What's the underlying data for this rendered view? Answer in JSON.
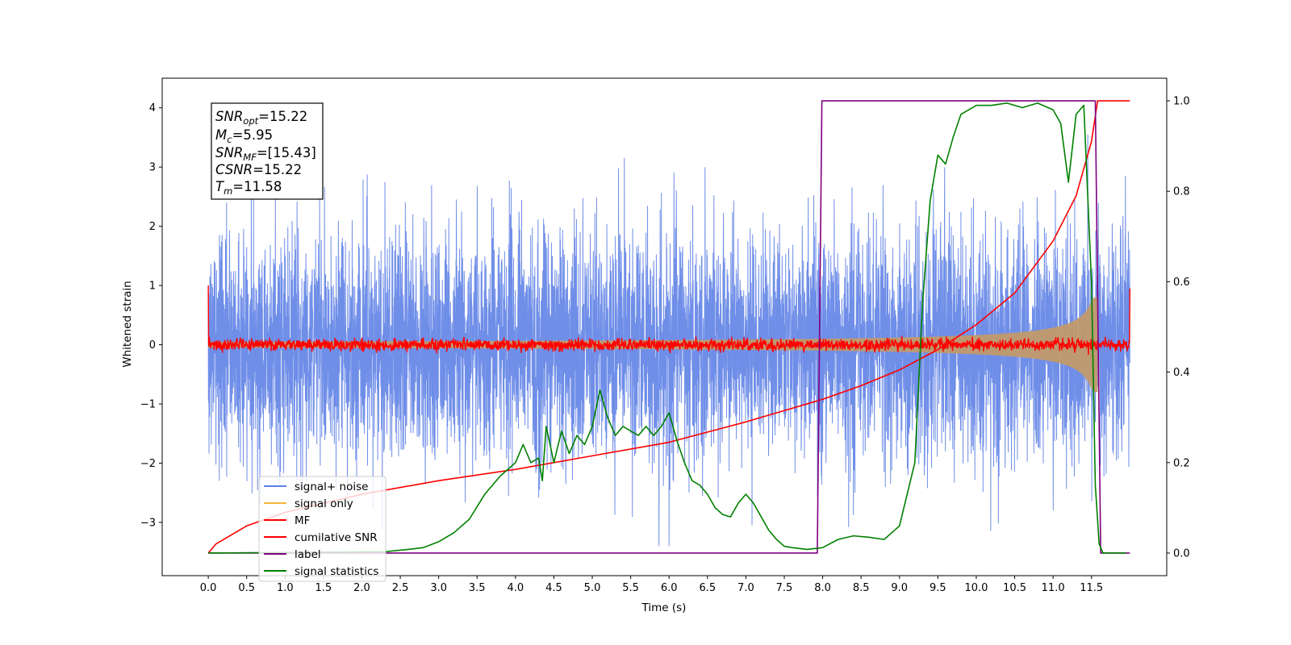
{
  "chart_data": {
    "type": "line",
    "xlabel": "Time (s)",
    "ylabel": "Whitened strain",
    "xlim": [
      -0.6,
      12.48
    ],
    "ylim": [
      -3.9,
      4.5
    ],
    "y2lim": [
      -0.05,
      1.05
    ],
    "x_ticks": [
      "0.0",
      "0.5",
      "1.0",
      "1.5",
      "2.0",
      "2.5",
      "3.0",
      "3.5",
      "4.0",
      "4.5",
      "5.0",
      "5.5",
      "6.0",
      "6.5",
      "7.0",
      "7.5",
      "8.0",
      "8.5",
      "9.0",
      "9.5",
      "10.0",
      "10.5",
      "11.0",
      "11.5"
    ],
    "y_ticks": [
      "4",
      "3",
      "2",
      "1",
      "0",
      "−1",
      "−2",
      "−3"
    ],
    "y2_ticks": [
      "1.0",
      "0.8",
      "0.6",
      "0.4",
      "0.2",
      "0.0"
    ],
    "info_box": {
      "snr_opt": {
        "sym": "SNR",
        "sub": "opt",
        "value": "=15.22"
      },
      "mc": {
        "sym": "M",
        "sub": "c",
        "value": "=5.95"
      },
      "snr_mf": {
        "sym": "SNR",
        "sub": "MF",
        "value": "=[15.43]"
      },
      "csnr": {
        "sym": "CSNR",
        "sub": "",
        "value": "=15.22"
      },
      "tm": {
        "sym": "T",
        "sub": "m",
        "value": "=11.58"
      }
    },
    "legend": {
      "position": "lower-left",
      "entries": [
        {
          "label": "signal+ noise",
          "color": "#5b7fe3"
        },
        {
          "label": "signal only",
          "color": "#f5b43c"
        },
        {
          "label": "MF",
          "color": "#ff0000"
        },
        {
          "label": "cumilative SNR",
          "color": "#ff0000"
        },
        {
          "label": "label",
          "color": "#800080"
        },
        {
          "label": "signal statistics",
          "color": "#008000"
        }
      ]
    },
    "series": [
      {
        "name": "signal+ noise",
        "axis": "left",
        "kind": "noise",
        "amplitude_std": 0.95,
        "x_range": [
          0,
          12.0
        ],
        "color": "#6f8ee8"
      },
      {
        "name": "signal only",
        "axis": "left",
        "kind": "chirp_envelope",
        "x_range": [
          0,
          11.58
        ],
        "amplitude_start": 0.05,
        "amplitude_end": 0.8,
        "color": "#c19a6b"
      },
      {
        "name": "MF",
        "axis": "left",
        "kind": "noise",
        "amplitude_std": 0.05,
        "x_range": [
          0,
          12.0
        ],
        "start_value": 1.0,
        "end_value": 0.95,
        "color": "#ff0000"
      },
      {
        "name": "cumilative SNR",
        "axis": "right",
        "x": [
          0.0,
          0.1,
          0.5,
          1.0,
          2.0,
          3.0,
          4.0,
          5.0,
          6.0,
          7.0,
          7.5,
          8.0,
          8.5,
          9.0,
          9.5,
          10.0,
          10.5,
          11.0,
          11.3,
          11.5,
          11.58,
          12.0
        ],
        "y": [
          0.0,
          0.02,
          0.06,
          0.09,
          0.13,
          0.16,
          0.185,
          0.215,
          0.245,
          0.29,
          0.315,
          0.34,
          0.37,
          0.405,
          0.45,
          0.505,
          0.575,
          0.69,
          0.79,
          0.91,
          1.0,
          1.0
        ],
        "color": "#ff0000"
      },
      {
        "name": "label",
        "axis": "right",
        "x": [
          0.0,
          7.93,
          7.99,
          11.55,
          11.62,
          12.0
        ],
        "y": [
          0.0,
          0.0,
          1.0,
          1.0,
          0.0,
          0.0
        ],
        "color": "#800080"
      },
      {
        "name": "signal statistics",
        "axis": "right",
        "x": [
          0.0,
          2.3,
          2.6,
          2.8,
          3.0,
          3.2,
          3.4,
          3.6,
          3.8,
          4.0,
          4.1,
          4.2,
          4.3,
          4.35,
          4.4,
          4.5,
          4.6,
          4.7,
          4.8,
          4.9,
          5.0,
          5.1,
          5.2,
          5.3,
          5.4,
          5.5,
          5.6,
          5.7,
          5.8,
          5.9,
          6.0,
          6.1,
          6.2,
          6.3,
          6.4,
          6.5,
          6.6,
          6.7,
          6.8,
          6.9,
          7.0,
          7.1,
          7.2,
          7.3,
          7.4,
          7.5,
          7.6,
          7.7,
          7.8,
          7.9,
          8.0,
          8.2,
          8.4,
          8.6,
          8.8,
          9.0,
          9.2,
          9.3,
          9.4,
          9.5,
          9.6,
          9.7,
          9.8,
          9.9,
          10.0,
          10.2,
          10.4,
          10.6,
          10.8,
          11.0,
          11.1,
          11.2,
          11.3,
          11.4,
          11.5,
          11.55,
          11.6,
          11.65,
          11.7,
          11.8,
          11.9,
          11.95
        ],
        "y": [
          0.0,
          0.003,
          0.008,
          0.012,
          0.025,
          0.045,
          0.075,
          0.13,
          0.17,
          0.2,
          0.24,
          0.2,
          0.21,
          0.16,
          0.28,
          0.2,
          0.27,
          0.22,
          0.26,
          0.24,
          0.28,
          0.36,
          0.3,
          0.26,
          0.28,
          0.27,
          0.26,
          0.28,
          0.26,
          0.28,
          0.31,
          0.25,
          0.2,
          0.16,
          0.15,
          0.13,
          0.1,
          0.085,
          0.08,
          0.11,
          0.13,
          0.11,
          0.08,
          0.05,
          0.03,
          0.015,
          0.012,
          0.01,
          0.008,
          0.01,
          0.012,
          0.03,
          0.038,
          0.035,
          0.03,
          0.06,
          0.2,
          0.55,
          0.78,
          0.88,
          0.86,
          0.92,
          0.97,
          0.98,
          0.99,
          0.99,
          0.995,
          0.985,
          0.995,
          0.98,
          0.95,
          0.82,
          0.97,
          0.99,
          0.6,
          0.15,
          0.02,
          0.0,
          0.0,
          0.0,
          0.0,
          0.0
        ],
        "color": "#008000"
      }
    ]
  }
}
